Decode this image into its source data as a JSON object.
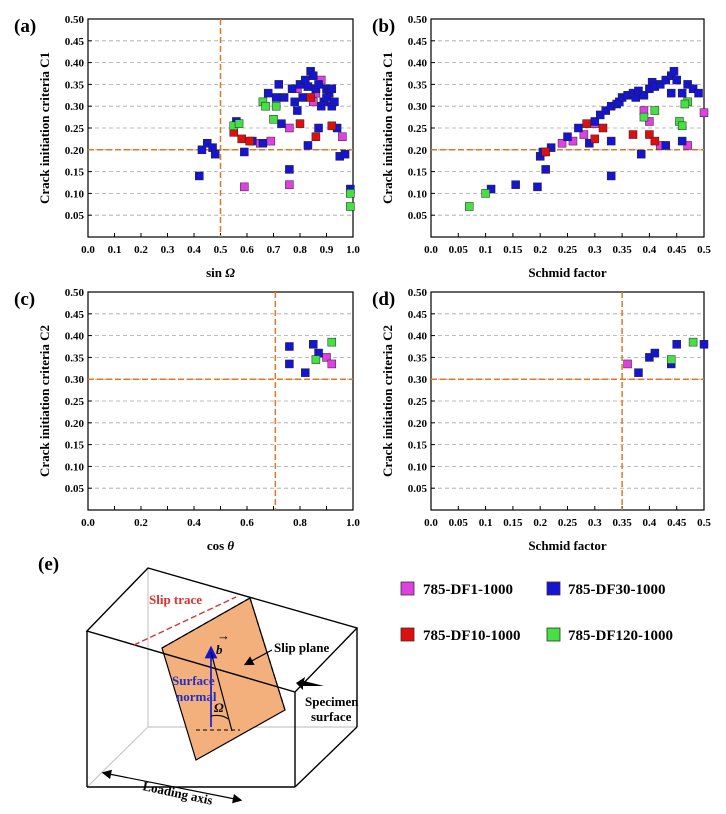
{
  "colors": {
    "magenta": "#e040e0",
    "blue": "#1414d2",
    "red": "#e00f0f",
    "green": "#44e044",
    "threshold": "#e07820",
    "slip_plane": "#f4b07c",
    "slip_trace": "#e03030",
    "normal_text": "#2030c0"
  },
  "legend": [
    {
      "label": "785-DF1-1000",
      "color": "#e040e0"
    },
    {
      "label": "785-DF30-1000",
      "color": "#1414d2"
    },
    {
      "label": "785-DF10-1000",
      "color": "#e00f0f"
    },
    {
      "label": "785-DF120-1000",
      "color": "#44e044"
    }
  ],
  "chart_data": [
    {
      "id": "a",
      "tag": "(a)",
      "type": "scatter",
      "xlabel_main": "sin ",
      "xlabel_sym": "Ω",
      "ylabel": "Crack initiation criteria C1",
      "xlim": [
        0,
        1
      ],
      "ylim": [
        0,
        0.5
      ],
      "xticks": [
        "0.0",
        "0.1",
        "0.2",
        "0.3",
        "0.4",
        "0.5",
        "0.6",
        "0.7",
        "0.8",
        "0.9",
        "1.0"
      ],
      "yticks": [
        "0.05",
        "0.10",
        "0.15",
        "0.20",
        "0.25",
        "0.30",
        "0.35",
        "0.40",
        "0.45",
        "0.50"
      ],
      "grid": true,
      "vline": 0.5,
      "hline": 0.2,
      "series": [
        {
          "name": "785-DF1-1000",
          "points": [
            [
              0.59,
              0.115
            ],
            [
              0.76,
              0.12
            ],
            [
              0.69,
              0.22
            ],
            [
              0.76,
              0.25
            ],
            [
              0.79,
              0.34
            ],
            [
              0.85,
              0.31
            ],
            [
              0.88,
              0.36
            ],
            [
              0.96,
              0.23
            ],
            [
              0.86,
              0.33
            ],
            [
              0.65,
              0.215
            ]
          ]
        },
        {
          "name": "785-DF30-1000",
          "points": [
            [
              0.42,
              0.14
            ],
            [
              0.43,
              0.2
            ],
            [
              0.45,
              0.215
            ],
            [
              0.47,
              0.205
            ],
            [
              0.48,
              0.19
            ],
            [
              0.56,
              0.265
            ],
            [
              0.59,
              0.195
            ],
            [
              0.62,
              0.22
            ],
            [
              0.66,
              0.215
            ],
            [
              0.68,
              0.33
            ],
            [
              0.71,
              0.32
            ],
            [
              0.72,
              0.35
            ],
            [
              0.73,
              0.26
            ],
            [
              0.74,
              0.32
            ],
            [
              0.76,
              0.155
            ],
            [
              0.77,
              0.34
            ],
            [
              0.78,
              0.31
            ],
            [
              0.79,
              0.29
            ],
            [
              0.8,
              0.35
            ],
            [
              0.81,
              0.32
            ],
            [
              0.82,
              0.36
            ],
            [
              0.83,
              0.345
            ],
            [
              0.84,
              0.38
            ],
            [
              0.85,
              0.37
            ],
            [
              0.86,
              0.34
            ],
            [
              0.87,
              0.35
            ],
            [
              0.88,
              0.3
            ],
            [
              0.89,
              0.31
            ],
            [
              0.9,
              0.34
            ],
            [
              0.91,
              0.33
            ],
            [
              0.92,
              0.3
            ],
            [
              0.93,
              0.31
            ],
            [
              0.94,
              0.25
            ],
            [
              0.95,
              0.185
            ],
            [
              0.97,
              0.19
            ],
            [
              0.99,
              0.11
            ],
            [
              0.87,
              0.25
            ],
            [
              0.83,
              0.21
            ],
            [
              0.9,
              0.32
            ],
            [
              0.92,
              0.34
            ]
          ]
        },
        {
          "name": "785-DF10-1000",
          "points": [
            [
              0.55,
              0.24
            ],
            [
              0.58,
              0.225
            ],
            [
              0.61,
              0.22
            ],
            [
              0.8,
              0.26
            ],
            [
              0.86,
              0.23
            ],
            [
              0.92,
              0.255
            ],
            [
              0.84,
              0.32
            ]
          ]
        },
        {
          "name": "785-DF120-1000",
          "points": [
            [
              0.55,
              0.255
            ],
            [
              0.57,
              0.26
            ],
            [
              0.66,
              0.31
            ],
            [
              0.67,
              0.3
            ],
            [
              0.7,
              0.27
            ],
            [
              0.71,
              0.3
            ],
            [
              0.99,
              0.07
            ],
            [
              0.99,
              0.1
            ]
          ]
        }
      ]
    },
    {
      "id": "b",
      "tag": "(b)",
      "type": "scatter",
      "xlabel_main": "Schmid factor",
      "xlabel_sym": "",
      "ylabel": "Crack initiation criteria C1",
      "xlim": [
        0,
        0.5
      ],
      "ylim": [
        0,
        0.5
      ],
      "xticks": [
        "0.0",
        "0.05",
        "0.1",
        "0.15",
        "0.2",
        "0.25",
        "0.3",
        "0.35",
        "0.4",
        "0.45",
        "0.5"
      ],
      "yticks": [
        "0.05",
        "0.10",
        "0.15",
        "0.20",
        "0.25",
        "0.30",
        "0.35",
        "0.40",
        "0.45",
        "0.50"
      ],
      "grid": true,
      "vline": null,
      "hline": 0.2,
      "series": [
        {
          "name": "785-DF1-1000",
          "points": [
            [
              0.24,
              0.215
            ],
            [
              0.26,
              0.22
            ],
            [
              0.28,
              0.235
            ],
            [
              0.3,
              0.26
            ],
            [
              0.4,
              0.265
            ],
            [
              0.42,
              0.21
            ],
            [
              0.47,
              0.21
            ],
            [
              0.5,
              0.285
            ],
            [
              0.39,
              0.29
            ]
          ]
        },
        {
          "name": "785-DF30-1000",
          "points": [
            [
              0.11,
              0.11
            ],
            [
              0.155,
              0.12
            ],
            [
              0.195,
              0.115
            ],
            [
              0.2,
              0.185
            ],
            [
              0.205,
              0.195
            ],
            [
              0.21,
              0.155
            ],
            [
              0.22,
              0.205
            ],
            [
              0.25,
              0.23
            ],
            [
              0.27,
              0.25
            ],
            [
              0.29,
              0.215
            ],
            [
              0.3,
              0.265
            ],
            [
              0.31,
              0.28
            ],
            [
              0.32,
              0.29
            ],
            [
              0.33,
              0.3
            ],
            [
              0.34,
              0.305
            ],
            [
              0.345,
              0.31
            ],
            [
              0.35,
              0.32
            ],
            [
              0.36,
              0.325
            ],
            [
              0.37,
              0.33
            ],
            [
              0.375,
              0.32
            ],
            [
              0.38,
              0.335
            ],
            [
              0.39,
              0.325
            ],
            [
              0.4,
              0.34
            ],
            [
              0.405,
              0.355
            ],
            [
              0.41,
              0.345
            ],
            [
              0.42,
              0.35
            ],
            [
              0.43,
              0.36
            ],
            [
              0.44,
              0.37
            ],
            [
              0.445,
              0.38
            ],
            [
              0.45,
              0.36
            ],
            [
              0.46,
              0.33
            ],
            [
              0.47,
              0.35
            ],
            [
              0.48,
              0.34
            ],
            [
              0.49,
              0.33
            ],
            [
              0.33,
              0.14
            ],
            [
              0.385,
              0.19
            ],
            [
              0.43,
              0.21
            ],
            [
              0.44,
              0.33
            ],
            [
              0.46,
              0.22
            ],
            [
              0.33,
              0.22
            ]
          ]
        },
        {
          "name": "785-DF10-1000",
          "points": [
            [
              0.21,
              0.195
            ],
            [
              0.285,
              0.26
            ],
            [
              0.315,
              0.25
            ],
            [
              0.37,
              0.235
            ],
            [
              0.4,
              0.235
            ],
            [
              0.41,
              0.22
            ],
            [
              0.3,
              0.225
            ]
          ]
        },
        {
          "name": "785-DF120-1000",
          "points": [
            [
              0.07,
              0.07
            ],
            [
              0.1,
              0.1
            ],
            [
              0.39,
              0.275
            ],
            [
              0.41,
              0.29
            ],
            [
              0.455,
              0.265
            ],
            [
              0.46,
              0.255
            ],
            [
              0.47,
              0.31
            ],
            [
              0.465,
              0.305
            ]
          ]
        }
      ]
    },
    {
      "id": "c",
      "tag": "(c)",
      "type": "scatter",
      "xlabel_main": "cos ",
      "xlabel_sym": "θ",
      "ylabel": "Crack initiation criteria C2",
      "xlim": [
        0,
        1
      ],
      "ylim": [
        0,
        0.5
      ],
      "xticks": [
        "0.0",
        "",
        "0.2",
        "",
        "0.4",
        "",
        "0.6",
        "",
        "0.8",
        "",
        "1.0"
      ],
      "yticks": [
        "0.05",
        "0.10",
        "0.15",
        "0.20",
        "0.25",
        "0.30",
        "0.35",
        "0.40",
        "0.45",
        "0.50"
      ],
      "grid": true,
      "vline": 0.707,
      "hline": 0.3,
      "series": [
        {
          "name": "785-DF1-1000",
          "points": [
            [
              0.9,
              0.35
            ],
            [
              0.92,
              0.335
            ]
          ]
        },
        {
          "name": "785-DF30-1000",
          "points": [
            [
              0.76,
              0.375
            ],
            [
              0.76,
              0.335
            ],
            [
              0.82,
              0.315
            ],
            [
              0.85,
              0.38
            ],
            [
              0.87,
              0.36
            ]
          ]
        },
        {
          "name": "785-DF10-1000",
          "points": []
        },
        {
          "name": "785-DF120-1000",
          "points": [
            [
              0.86,
              0.345
            ],
            [
              0.92,
              0.385
            ]
          ]
        }
      ]
    },
    {
      "id": "d",
      "tag": "(d)",
      "type": "scatter",
      "xlabel_main": "Schmid factor",
      "xlabel_sym": "",
      "ylabel": "Crack initiation criteria C2",
      "xlim": [
        0,
        0.5
      ],
      "ylim": [
        0,
        0.5
      ],
      "xticks": [
        "0.0",
        "0.05",
        "0.1",
        "0.15",
        "0.2",
        "0.25",
        "0.3",
        "0.35",
        "0.4",
        "0.45",
        "0.5"
      ],
      "yticks": [
        "0.05",
        "0.10",
        "0.15",
        "0.20",
        "0.25",
        "0.30",
        "0.35",
        "0.40",
        "0.45",
        "0.50"
      ],
      "grid": true,
      "vline": 0.35,
      "hline": 0.3,
      "series": [
        {
          "name": "785-DF1-1000",
          "points": [
            [
              0.36,
              0.335
            ]
          ]
        },
        {
          "name": "785-DF30-1000",
          "points": [
            [
              0.38,
              0.315
            ],
            [
              0.4,
              0.35
            ],
            [
              0.41,
              0.36
            ],
            [
              0.44,
              0.335
            ],
            [
              0.45,
              0.38
            ],
            [
              0.5,
              0.38
            ]
          ]
        },
        {
          "name": "785-DF10-1000",
          "points": []
        },
        {
          "name": "785-DF120-1000",
          "points": [
            [
              0.44,
              0.345
            ],
            [
              0.48,
              0.385
            ]
          ]
        }
      ]
    }
  ],
  "diagram": {
    "tag": "(e)",
    "slip_trace": "Slip trace",
    "slip_plane": "Slip plane",
    "surface_normal_1": "Surface",
    "surface_normal_2": "normal",
    "specimen_surface_1": "Specimen",
    "specimen_surface_2": "surface",
    "loading_axis": "Loading axis",
    "b_symbol": "b",
    "omega_symbol": "Ω"
  }
}
